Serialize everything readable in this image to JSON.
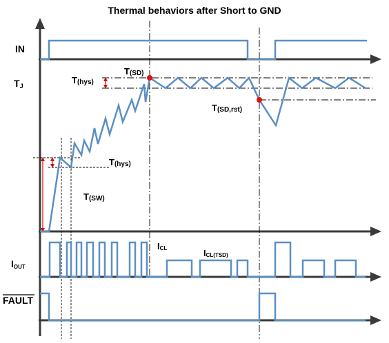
{
  "title": "Thermal behaviors after Short to GND",
  "signals": {
    "in": "IN",
    "tj": {
      "main": "T",
      "sub": "J"
    },
    "iout": {
      "main": "I",
      "sub": "OUT"
    },
    "fault": "FAULT"
  },
  "annotations": {
    "t_sd": {
      "main": "T",
      "sub": "(SD)"
    },
    "t_hys_top": {
      "main": "T",
      "sub": "(hys)"
    },
    "t_sd_rst": {
      "main": "T",
      "sub": "(SD,rst)"
    },
    "t_hys_low": {
      "main": "T",
      "sub": "(hys)"
    },
    "t_sw": {
      "main": "T",
      "sub": "(SW)"
    },
    "i_cl": {
      "main": "I",
      "sub": "CL"
    },
    "i_cl_tsd": {
      "main": "I",
      "sub": "CL(TSD)"
    }
  },
  "colors": {
    "waveform": "#5b8fc3",
    "axis": "#3a3a3a",
    "marker": "#e01010"
  }
}
